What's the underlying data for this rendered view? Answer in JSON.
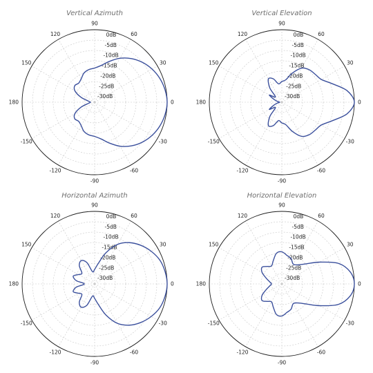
{
  "colors": {
    "pattern": "#3a4f9c",
    "outer": "#1a1a1a",
    "grid": "#c8c8c8",
    "title": "#6e6e6e"
  },
  "chart_data": [
    {
      "type": "polar",
      "title": "Vertical Azimuth",
      "angle_ticks": [
        "0",
        "30",
        "60",
        "90",
        "120",
        "150",
        "180",
        "-150",
        "-120",
        "-90",
        "-60",
        "-30"
      ],
      "radial_ticks": [
        "0dB",
        "-5dB",
        "-10dB",
        "-15dB",
        "-20dB",
        "-25dB",
        "-30dB"
      ],
      "rlim_db": [
        -35,
        0
      ],
      "grid": true,
      "series": [
        {
          "angle_deg": [
            0,
            10,
            20,
            30,
            40,
            50,
            60,
            70,
            80,
            90,
            100,
            110,
            120,
            130,
            140,
            150,
            160,
            170,
            180,
            190,
            200,
            210,
            220,
            230,
            240,
            250,
            260,
            270,
            280,
            290,
            300,
            310,
            320,
            330,
            340,
            350
          ],
          "gain_db": [
            0,
            -0.5,
            -1.5,
            -3,
            -5,
            -7.5,
            -10.5,
            -14,
            -17,
            -18.5,
            -19,
            -20,
            -22,
            -23,
            -22.5,
            -24,
            -28,
            -32,
            -33,
            -32,
            -28,
            -24,
            -22.5,
            -23,
            -22,
            -20,
            -19,
            -18.5,
            -17,
            -14,
            -10.5,
            -7.5,
            -5,
            -3,
            -1.5,
            -0.5
          ]
        }
      ]
    },
    {
      "type": "polar",
      "title": "Vertical Elevation",
      "angle_ticks": [
        "0",
        "30",
        "60",
        "90",
        "120",
        "150",
        "180",
        "-150",
        "-120",
        "-90",
        "-60",
        "-30"
      ],
      "radial_ticks": [
        "0dB",
        "-5dB",
        "-10dB",
        "-15dB",
        "-20dB",
        "-25dB",
        "-30dB"
      ],
      "rlim_db": [
        -35,
        0
      ],
      "grid": true,
      "series": [
        {
          "angle_deg": [
            0,
            10,
            20,
            30,
            40,
            50,
            60,
            70,
            80,
            90,
            100,
            110,
            120,
            130,
            140,
            150,
            160,
            170,
            180,
            190,
            200,
            210,
            220,
            230,
            240,
            250,
            260,
            270,
            280,
            290,
            300,
            310,
            320,
            330,
            340,
            350
          ],
          "gain_db": [
            0,
            -3,
            -9,
            -13,
            -14,
            -14.5,
            -16,
            -20,
            -24,
            -25,
            -26,
            -23,
            -22,
            -26,
            -31,
            -28,
            -31,
            -33,
            -34,
            -33,
            -31,
            -28,
            -31,
            -26,
            -22,
            -23,
            -26,
            -25,
            -24,
            -20,
            -16,
            -14.5,
            -14,
            -13,
            -9,
            -3
          ]
        }
      ]
    },
    {
      "type": "polar",
      "title": "Horizontal Azimuth",
      "angle_ticks": [
        "0",
        "30",
        "60",
        "90",
        "120",
        "150",
        "180",
        "-150",
        "-120",
        "-90",
        "-60",
        "-30"
      ],
      "radial_ticks": [
        "0dB",
        "-5dB",
        "-10dB",
        "-15dB",
        "-20dB",
        "-25dB",
        "-30dB"
      ],
      "rlim_db": [
        -35,
        0
      ],
      "grid": true,
      "series": [
        {
          "angle_deg": [
            0,
            10,
            20,
            30,
            40,
            50,
            60,
            70,
            80,
            90,
            100,
            110,
            120,
            130,
            140,
            150,
            160,
            170,
            180,
            190,
            200,
            210,
            220,
            230,
            240,
            250,
            260,
            270,
            280,
            290,
            300,
            310,
            320,
            330,
            340,
            350
          ],
          "gain_db": [
            0,
            -0.5,
            -1.5,
            -3.5,
            -6,
            -9,
            -13,
            -19,
            -25,
            -28,
            -29,
            -24,
            -22,
            -23.5,
            -27,
            -26,
            -24,
            -26,
            -30,
            -26,
            -24,
            -26,
            -27,
            -23.5,
            -22,
            -24,
            -29,
            -28,
            -25,
            -19,
            -13,
            -9,
            -6,
            -3.5,
            -1.5,
            -0.5
          ]
        }
      ]
    },
    {
      "type": "polar",
      "title": "Horizontal Elevation",
      "angle_ticks": [
        "0",
        "30",
        "60",
        "90",
        "120",
        "150",
        "180",
        "-150",
        "-120",
        "-90",
        "-60",
        "-30"
      ],
      "radial_ticks": [
        "0dB",
        "-5dB",
        "-10dB",
        "-15dB",
        "-20dB",
        "-25dB",
        "-30dB"
      ],
      "rlim_db": [
        -35,
        0
      ],
      "grid": true,
      "series": [
        {
          "angle_deg": [
            0,
            10,
            20,
            30,
            40,
            50,
            60,
            70,
            80,
            90,
            100,
            110,
            120,
            130,
            140,
            150,
            160,
            170,
            180,
            190,
            200,
            210,
            220,
            230,
            240,
            250,
            260,
            270,
            280,
            290,
            300,
            310,
            320,
            330,
            340,
            350
          ],
          "gain_db": [
            0,
            -1.5,
            -6,
            -14,
            -20,
            -23,
            -24,
            -22,
            -21,
            -19.5,
            -20,
            -23,
            -25,
            -24,
            -22.5,
            -24,
            -27,
            -29,
            -30,
            -29,
            -27,
            -24,
            -22.5,
            -24,
            -25,
            -23,
            -20,
            -19.5,
            -21,
            -22,
            -24,
            -23,
            -20,
            -14,
            -6,
            -1.5
          ]
        }
      ]
    }
  ]
}
